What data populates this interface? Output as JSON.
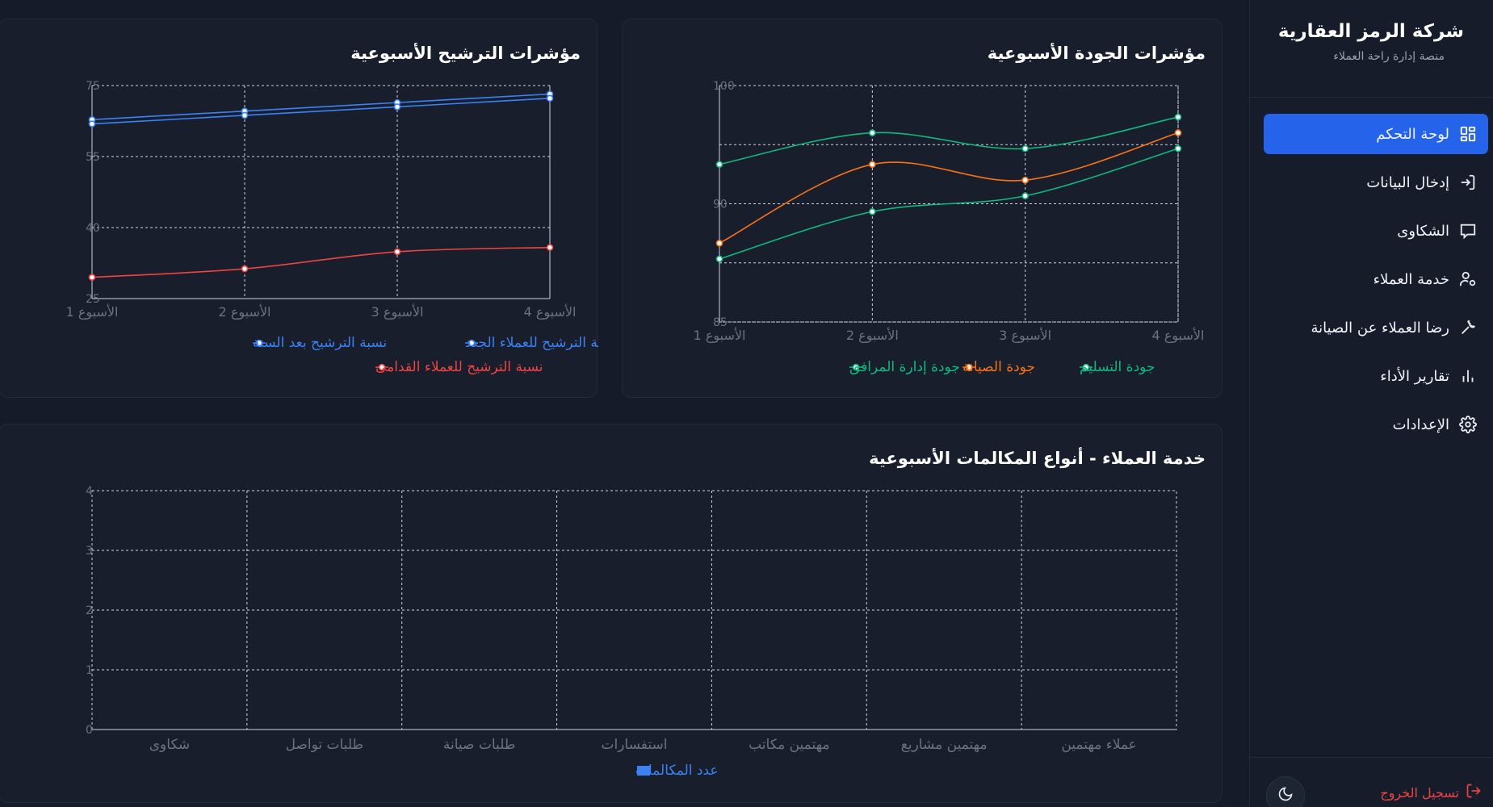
{
  "sidebar": {
    "company": "شركة الرمز العقارية",
    "subtitle": "منصة إدارة راحة العملاء",
    "items": [
      {
        "label": "لوحة التحكم",
        "icon": "dashboard-icon",
        "active": true
      },
      {
        "label": "إدخال البيانات",
        "icon": "login-icon",
        "active": false
      },
      {
        "label": "الشكاوى",
        "icon": "message-icon",
        "active": false
      },
      {
        "label": "خدمة العملاء",
        "icon": "user-settings-icon",
        "active": false
      },
      {
        "label": "رضا العملاء عن الصيانة",
        "icon": "wrench-icon",
        "active": false
      },
      {
        "label": "تقارير الأداء",
        "icon": "bar-chart-icon",
        "active": false
      },
      {
        "label": "الإعدادات",
        "icon": "gear-icon",
        "active": false
      }
    ],
    "logout": "تسجيل الخروج",
    "theme_toggle_icon": "moon-icon"
  },
  "colors": {
    "accent": "#2563eb",
    "green": "#10b981",
    "orange": "#f97316",
    "blue": "#3b82f6",
    "red": "#ef4444",
    "logout": "#ef4444"
  },
  "cards": {
    "quality_title": "مؤشرات الجودة الأسبوعية",
    "nomination_title": "مؤشرات الترشيح الأسبوعية",
    "calls_title": "خدمة العملاء - أنواع المكالمات الأسبوعية"
  },
  "chart_data": [
    {
      "id": "quality",
      "type": "line",
      "title": "مؤشرات الجودة الأسبوعية",
      "categories": [
        "الأسبوع 1",
        "الأسبوع 2",
        "الأسبوع 3",
        "الأسبوع 4"
      ],
      "ylim": [
        85,
        100
      ],
      "yticks": [
        "85",
        "",
        "90",
        "",
        "100"
      ],
      "grid": true,
      "legend": "bottom",
      "series": [
        {
          "name": "جودة التسليم",
          "color": "#10b981",
          "values": [
            95,
            97,
            96,
            98
          ]
        },
        {
          "name": "جودة الصيانة",
          "color": "#f97316",
          "values": [
            90,
            95,
            94,
            97
          ]
        },
        {
          "name": "جودة إدارة المرافق",
          "color": "#10b981",
          "values": [
            89,
            92,
            93,
            96
          ]
        }
      ]
    },
    {
      "id": "nomination",
      "type": "line",
      "title": "مؤشرات الترشيح الأسبوعية",
      "categories": [
        "الأسبوع 1",
        "الأسبوع 2",
        "الأسبوع 3",
        "الأسبوع 4"
      ],
      "ylim": [
        25,
        75
      ],
      "yticks": [
        "25",
        "40",
        "55",
        "75"
      ],
      "grid": true,
      "legend": "bottom",
      "series": [
        {
          "name": "نسبة الترشيح للعملاء الجدد",
          "color": "#3b82f6",
          "values": [
            67,
            69,
            71,
            73
          ]
        },
        {
          "name": "نسبة الترشيح بعد السنة",
          "color": "#3b82f6",
          "values": [
            66,
            68,
            70,
            72
          ]
        },
        {
          "name": "نسبة الترشيح للعملاء القدامى",
          "color": "#ef4444",
          "values": [
            30,
            32,
            36,
            37
          ]
        }
      ]
    },
    {
      "id": "calls",
      "type": "bar",
      "title": "خدمة العملاء - أنواع المكالمات الأسبوعية",
      "categories": [
        "عملاء مهتمين",
        "مهتمين مشاريع",
        "مهتمين مكاتب",
        "استفسارات",
        "طلبات صيانة",
        "طلبات تواصل",
        "شكاوى"
      ],
      "ylim": [
        0,
        4
      ],
      "yticks": [
        "0",
        "1",
        "2",
        "3",
        "4"
      ],
      "grid": true,
      "legend": "bottom",
      "series": [
        {
          "name": "عدد المكالمات",
          "color": "#3b82f6",
          "values": [
            0,
            0,
            0,
            0,
            0,
            0,
            0
          ]
        }
      ]
    }
  ]
}
